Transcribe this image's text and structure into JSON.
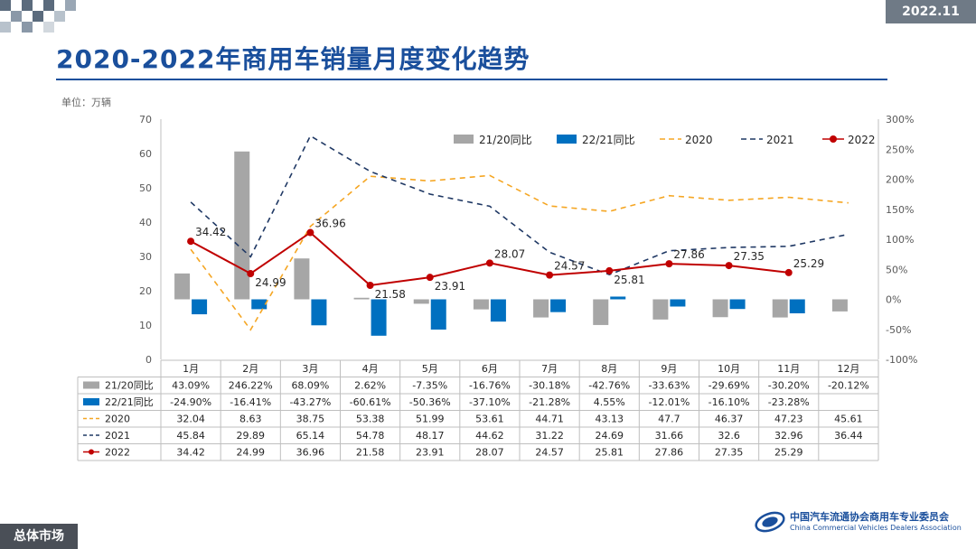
{
  "header": {
    "date": "2022.11",
    "title": "2020-2022年商用车销量月度变化趋势",
    "unit": "单位：万辆"
  },
  "footer": {
    "section": "总体市场",
    "logo_cn": "中国汽车流通协会商用车专业委员会",
    "logo_en": "China Commercial Vehicles Dealers Association"
  },
  "colors": {
    "title": "#1a4f9c",
    "gray_bar": "#a6a6a6",
    "blue_bar": "#0070c0",
    "s2020": "#f5a623",
    "s2021": "#1f3864",
    "s2022": "#c00000"
  },
  "chart_data": {
    "type": "bar+line",
    "categories": [
      "1月",
      "2月",
      "3月",
      "4月",
      "5月",
      "6月",
      "7月",
      "8月",
      "9月",
      "10月",
      "11月",
      "12月"
    ],
    "y_left": {
      "range": [
        0,
        70
      ],
      "ticks": [
        "0",
        "10",
        "20",
        "30",
        "40",
        "50",
        "60",
        "70"
      ]
    },
    "y_right": {
      "range": [
        -100,
        300
      ],
      "ticks": [
        "-100%",
        "-50%",
        "0%",
        "50%",
        "100%",
        "150%",
        "200%",
        "250%",
        "300%"
      ]
    },
    "legend": [
      "21/20同比",
      "22/21同比",
      "2020",
      "2021",
      "2022"
    ],
    "legend_position": "top-right",
    "bar_series": [
      {
        "name": "21/20同比",
        "values": [
          43.09,
          246.22,
          68.09,
          2.62,
          -7.35,
          -16.76,
          -30.18,
          -42.76,
          -33.63,
          -29.69,
          -30.2,
          -20.12
        ],
        "labels": [
          "43.09%",
          "246.22%",
          "68.09%",
          "2.62%",
          "-7.35%",
          "-16.76%",
          "-30.18%",
          "-42.76%",
          "-33.63%",
          "-29.69%",
          "-30.20%",
          "-20.12%"
        ]
      },
      {
        "name": "22/21同比",
        "values": [
          -24.9,
          -16.41,
          -43.27,
          -60.61,
          -50.36,
          -37.1,
          -21.28,
          4.55,
          -12.01,
          -16.1,
          -23.28,
          null
        ],
        "labels": [
          "-24.90%",
          "-16.41%",
          "-43.27%",
          "-60.61%",
          "-50.36%",
          "-37.10%",
          "-21.28%",
          "4.55%",
          "-12.01%",
          "-16.10%",
          "-23.28%",
          ""
        ]
      }
    ],
    "line_series": [
      {
        "name": "2020",
        "values": [
          32.04,
          8.63,
          38.75,
          53.38,
          51.99,
          53.61,
          44.71,
          43.13,
          47.7,
          46.37,
          47.23,
          45.61
        ],
        "labels": [
          "32.04",
          "8.63",
          "38.75",
          "53.38",
          "51.99",
          "53.61",
          "44.71",
          "43.13",
          "47.7",
          "46.37",
          "47.23",
          "45.61"
        ]
      },
      {
        "name": "2021",
        "values": [
          45.84,
          29.89,
          65.14,
          54.78,
          48.17,
          44.62,
          31.22,
          24.69,
          31.66,
          32.6,
          32.96,
          36.44
        ],
        "labels": [
          "45.84",
          "29.89",
          "65.14",
          "54.78",
          "48.17",
          "44.62",
          "31.22",
          "24.69",
          "31.66",
          "32.6",
          "32.96",
          "36.44"
        ]
      },
      {
        "name": "2022",
        "values": [
          34.42,
          24.99,
          36.96,
          21.58,
          23.91,
          28.07,
          24.57,
          25.81,
          27.86,
          27.35,
          25.29,
          null
        ],
        "labels": [
          "34.42",
          "24.99",
          "36.96",
          "21.58",
          "23.91",
          "28.07",
          "24.57",
          "25.81",
          "27.86",
          "27.35",
          "25.29",
          ""
        ]
      }
    ]
  }
}
